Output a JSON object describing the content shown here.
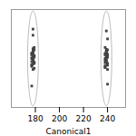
{
  "chart_data": {
    "type": "scatter",
    "xlabel": "Canonical1",
    "x": [
      177,
      178,
      178,
      179,
      177,
      178,
      179,
      178,
      177,
      179,
      178,
      177,
      179,
      178,
      177,
      179,
      178,
      177,
      179,
      178,
      177,
      178,
      179,
      177,
      178,
      179,
      177,
      178,
      179,
      178,
      238,
      239,
      239,
      240,
      238,
      239,
      240,
      239,
      238,
      240,
      239,
      238,
      240,
      239,
      238,
      240,
      239,
      238,
      240,
      239,
      238,
      239,
      240,
      238,
      239,
      240,
      238,
      239,
      240,
      239,
      177,
      178,
      240,
      239,
      178,
      240
    ],
    "values": [
      0.0,
      0.3,
      -0.3,
      0.5,
      -0.5,
      0.8,
      -0.8,
      1.0,
      -1.0,
      0.2,
      -0.2,
      0.6,
      -0.6,
      1.3,
      -1.3,
      0.4,
      -0.4,
      0.7,
      -0.7,
      1.1,
      -1.1,
      1.6,
      -1.6,
      0.9,
      -0.9,
      1.4,
      0.1,
      -0.1,
      1.8,
      -1.8,
      0.0,
      0.4,
      -0.4,
      0.7,
      -0.7,
      1.0,
      -1.0,
      1.5,
      -1.5,
      0.2,
      -0.2,
      0.8,
      -0.8,
      1.2,
      -1.2,
      0.5,
      -0.5,
      1.8,
      -1.8,
      0.3,
      -0.3,
      1.1,
      -1.1,
      0.6,
      -0.6,
      1.4,
      -1.4,
      0.9,
      -0.9,
      0.1,
      -4.5,
      4.8,
      -4.2,
      4.5,
      3.8,
      3.2
    ],
    "color": "#444444",
    "marker": "square",
    "ellipses": [
      {
        "cx": 178,
        "cy": 0,
        "width": 9,
        "height": 15.5,
        "color": "#bbbbbb"
      },
      {
        "cx": 239,
        "cy": 0,
        "width": 9,
        "height": 15.5,
        "color": "#bbbbbb"
      }
    ],
    "xlim": [
      160,
      255
    ],
    "xticks": [
      180,
      200,
      220,
      240
    ],
    "ylim": [
      -8,
      8
    ],
    "tick_labels": "x"
  }
}
